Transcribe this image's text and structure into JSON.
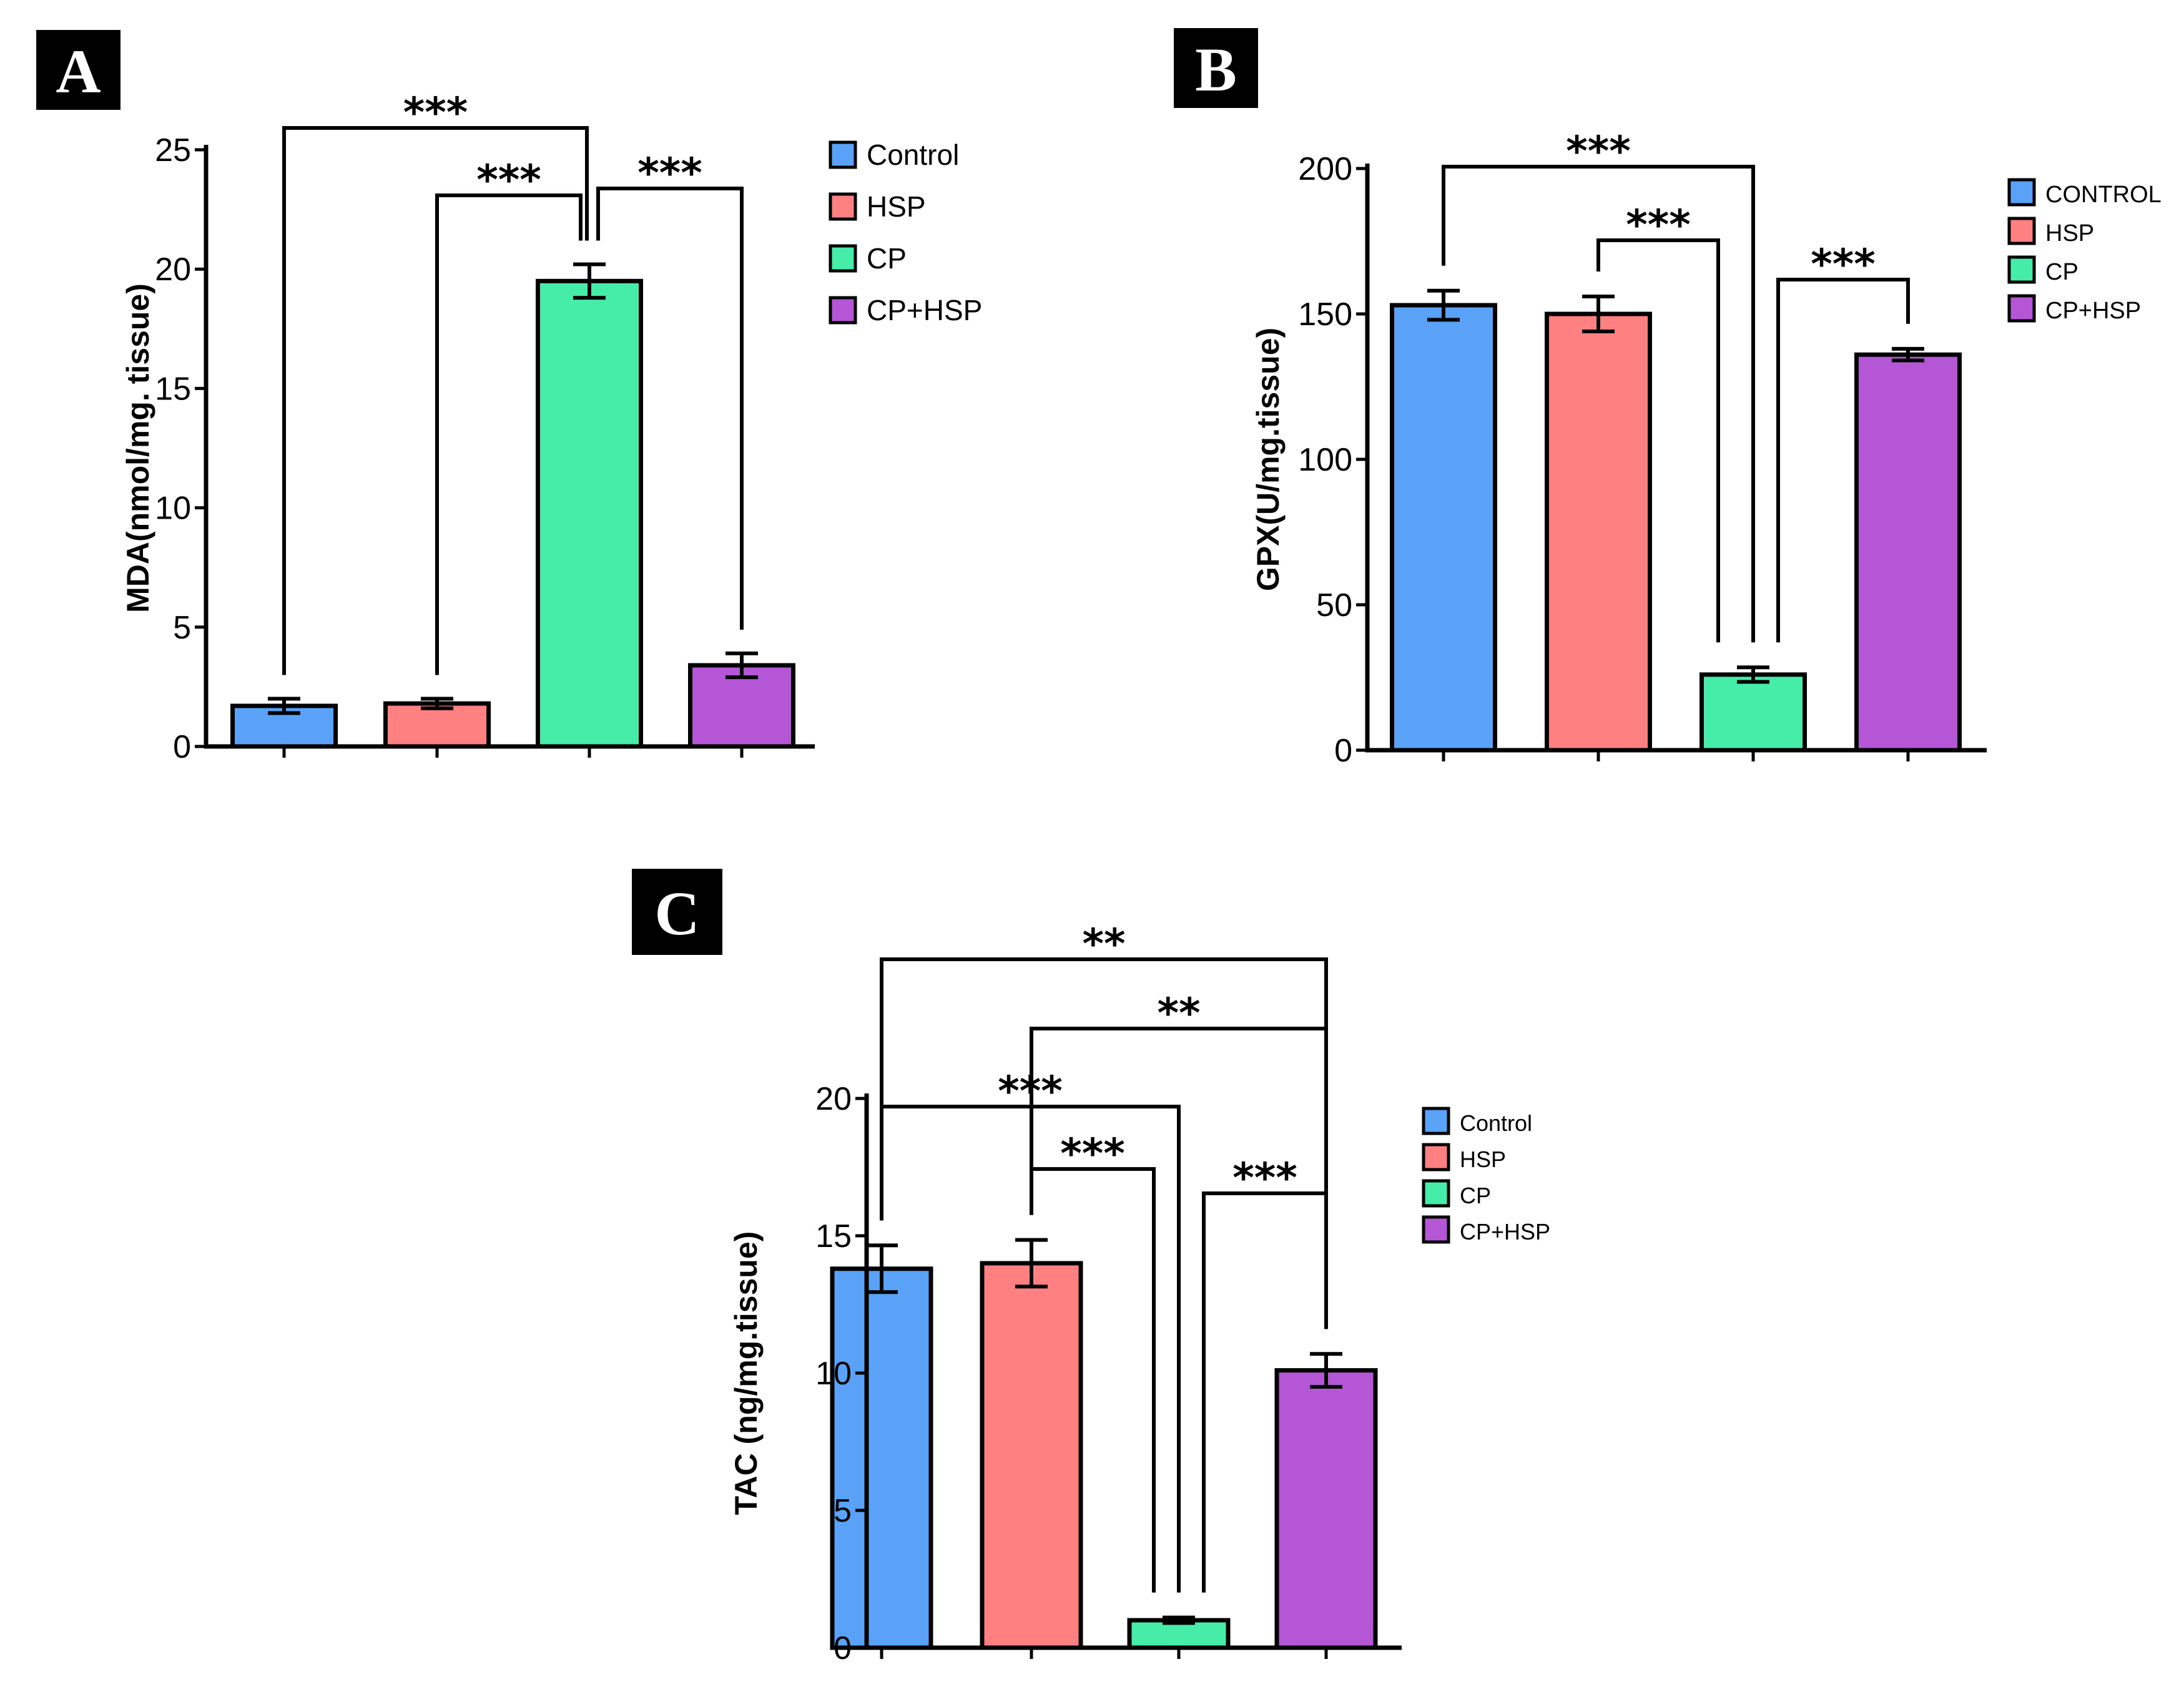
{
  "figure": {
    "colors": {
      "Control": "#5aa2f7",
      "HSP": "#ff8080",
      "CP": "#45eda8",
      "CP+HSP": "#b556d6"
    }
  },
  "chart_data": [
    {
      "panel": "A",
      "type": "bar",
      "ylabel": "MDA(nmol/mg. tissue)",
      "ylim": [
        0,
        25
      ],
      "yticks": [
        0,
        5,
        10,
        15,
        20,
        25
      ],
      "categories": [
        "Control",
        "HSP",
        "CP",
        "CP+HSP"
      ],
      "legend": [
        "Control",
        "HSP",
        "CP",
        "CP+HSP"
      ],
      "values": [
        1.7,
        1.8,
        19.5,
        3.4
      ],
      "errors": [
        0.3,
        0.2,
        0.7,
        0.5
      ],
      "significance": [
        {
          "from": 0,
          "to": 2,
          "label": "***"
        },
        {
          "from": 1,
          "to": 2,
          "label": "***"
        },
        {
          "from": 2,
          "to": 3,
          "label": "***"
        }
      ]
    },
    {
      "panel": "B",
      "type": "bar",
      "ylabel": "GPX(U/mg.tissue)",
      "ylim": [
        0,
        200
      ],
      "yticks": [
        0,
        50,
        100,
        150,
        200
      ],
      "categories": [
        "CONTROL",
        "HSP",
        "CP",
        "CP+HSP"
      ],
      "legend": [
        "CONTROL",
        "HSP",
        "CP",
        "CP+HSP"
      ],
      "values": [
        153,
        150,
        26,
        136
      ],
      "errors": [
        5,
        6,
        2.5,
        2
      ],
      "significance": [
        {
          "from": 0,
          "to": 2,
          "label": "***"
        },
        {
          "from": 1,
          "to": 2,
          "label": "***"
        },
        {
          "from": 2,
          "to": 3,
          "label": "***"
        }
      ]
    },
    {
      "panel": "C",
      "type": "bar",
      "ylabel": "TAC (ng/mg.tissue)",
      "ylim": [
        0,
        20
      ],
      "yticks": [
        0,
        5,
        10,
        15,
        20
      ],
      "categories": [
        "Control",
        "HSP",
        "CP",
        "CP+HSP"
      ],
      "legend": [
        "Control",
        "HSP",
        "CP",
        "CP+HSP"
      ],
      "values": [
        13.8,
        14.0,
        1.0,
        10.1
      ],
      "errors": [
        0.85,
        0.85,
        0.1,
        0.6
      ],
      "significance": [
        {
          "from": 0,
          "to": 3,
          "label": "**"
        },
        {
          "from": 1,
          "to": 3,
          "label": "**"
        },
        {
          "from": 0,
          "to": 2,
          "label": "***"
        },
        {
          "from": 1,
          "to": 2,
          "label": "***"
        },
        {
          "from": 2,
          "to": 3,
          "label": "***"
        }
      ]
    }
  ]
}
